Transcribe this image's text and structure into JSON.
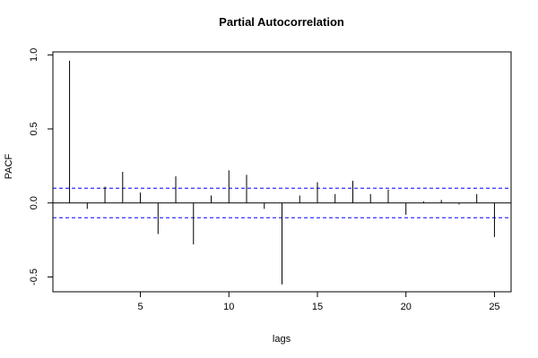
{
  "chart_data": {
    "type": "bar",
    "title": "Partial Autocorrelation",
    "xlabel": "lags",
    "ylabel": "PACF",
    "xlim": [
      0.06,
      25.94
    ],
    "ylim": [
      -0.6,
      1.02
    ],
    "x_ticks": [
      5,
      10,
      15,
      20,
      25
    ],
    "y_ticks": [
      -0.5,
      0.0,
      0.5,
      1.0
    ],
    "x_tick_labels": [
      "5",
      "10",
      "15",
      "20",
      "25"
    ],
    "y_tick_labels": [
      "-0.5",
      "0.0",
      "0.5",
      "1.0"
    ],
    "confidence_bound": 0.1,
    "colors": {
      "bars": "#000000",
      "zero_line": "#000000",
      "confidence": "#0000ff",
      "frame": "#000000"
    },
    "lags": [
      1,
      2,
      3,
      4,
      5,
      6,
      7,
      8,
      9,
      10,
      11,
      12,
      13,
      14,
      15,
      16,
      17,
      18,
      19,
      20,
      21,
      22,
      23,
      24,
      25
    ],
    "values": [
      0.96,
      -0.04,
      0.11,
      0.21,
      0.07,
      -0.21,
      0.18,
      -0.28,
      0.05,
      0.22,
      0.19,
      -0.04,
      -0.55,
      0.05,
      0.14,
      0.06,
      0.15,
      0.06,
      0.09,
      -0.08,
      0.01,
      0.02,
      -0.01,
      0.06,
      -0.23
    ]
  }
}
